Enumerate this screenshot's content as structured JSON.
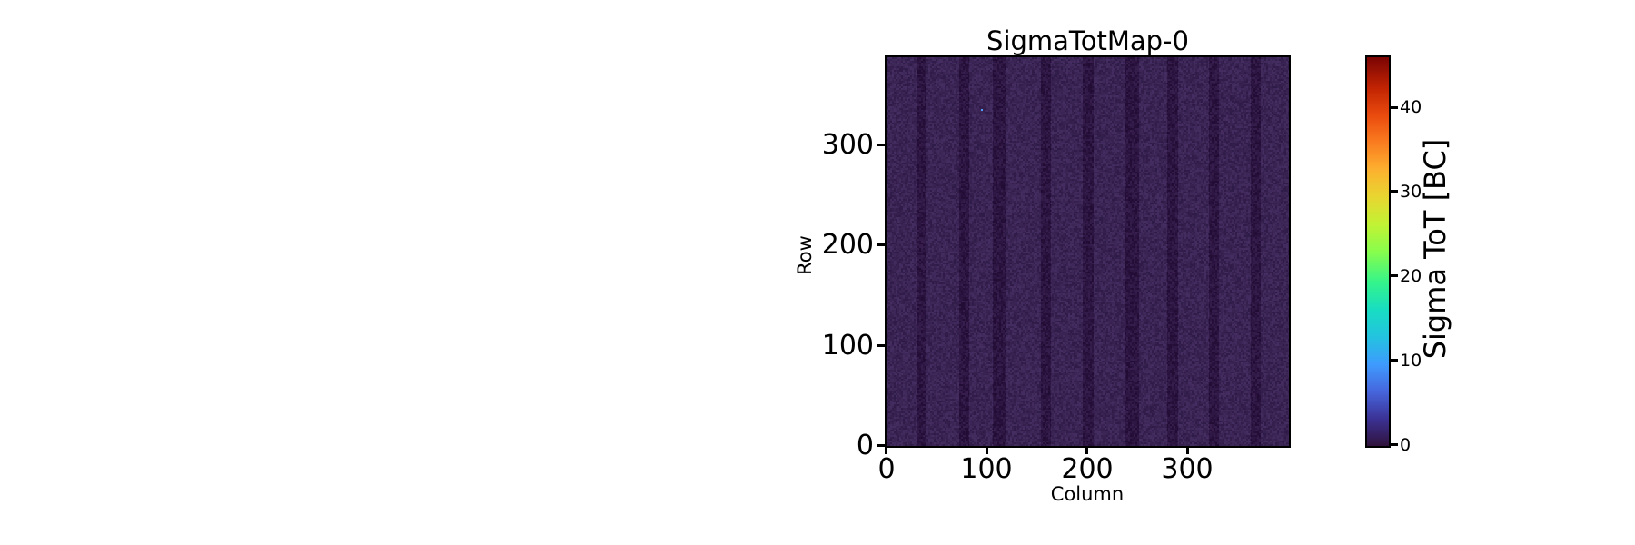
{
  "chart_data": {
    "type": "heatmap",
    "title": "SigmaTotMap-0",
    "xlabel": "Column",
    "ylabel": "Row",
    "x_ticks": [
      "0",
      "100",
      "200",
      "300"
    ],
    "y_ticks": [
      "0",
      "100",
      "200",
      "300"
    ],
    "x_range": [
      0,
      400
    ],
    "y_range": [
      0,
      384
    ],
    "grid": false,
    "colorbar": {
      "label": "Sigma ToT [BC]",
      "ticks": [
        "0",
        "10",
        "20",
        "30",
        "40"
      ],
      "range": [
        0,
        46
      ],
      "colormap": "turbo",
      "stops": [
        {
          "pos": 0.0,
          "color": "#30123b"
        },
        {
          "pos": 0.07,
          "color": "#3b3295"
        },
        {
          "pos": 0.14,
          "color": "#4666dd"
        },
        {
          "pos": 0.21,
          "color": "#3e9bfe"
        },
        {
          "pos": 0.28,
          "color": "#23c3e0"
        },
        {
          "pos": 0.35,
          "color": "#18ddc2"
        },
        {
          "pos": 0.42,
          "color": "#34f48b"
        },
        {
          "pos": 0.5,
          "color": "#88fd4c"
        },
        {
          "pos": 0.57,
          "color": "#c2f234"
        },
        {
          "pos": 0.64,
          "color": "#e8d630"
        },
        {
          "pos": 0.71,
          "color": "#fcb12f"
        },
        {
          "pos": 0.78,
          "color": "#fa7d20"
        },
        {
          "pos": 0.85,
          "color": "#ea4b0e"
        },
        {
          "pos": 0.92,
          "color": "#c22403"
        },
        {
          "pos": 1.0,
          "color": "#7a0403"
        }
      ]
    },
    "heatmap": {
      "base_value_bc": 1.2,
      "stripe_value_bc": 0.5,
      "base_color": "#3a2454",
      "stripe_color": "#2c1541",
      "noise_amplitude": 11,
      "stripe_centers_col": [
        34,
        77,
        112,
        158,
        200,
        244,
        284,
        325,
        367
      ],
      "stripe_halfwidth_col": [
        5,
        5,
        7,
        5,
        5,
        7,
        5,
        5,
        5
      ],
      "outliers": [
        {
          "col": 94,
          "row": 333,
          "value": 10,
          "color": "#4f9efa"
        }
      ]
    }
  }
}
